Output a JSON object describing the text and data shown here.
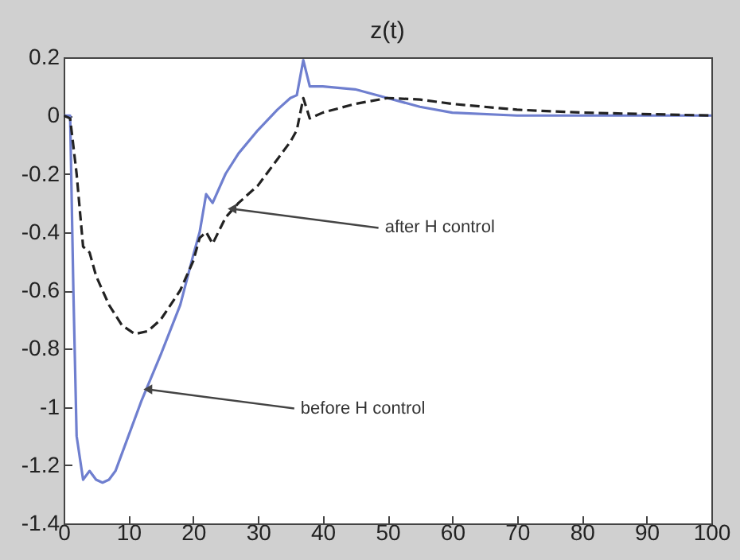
{
  "chart_data": {
    "type": "line",
    "title": "z(t)",
    "xlim": [
      0,
      100
    ],
    "xticks": [
      0,
      10,
      20,
      30,
      40,
      50,
      60,
      70,
      80,
      90,
      100
    ],
    "ylim": [
      -1.4,
      0.2
    ],
    "yticks": [
      -1.4,
      -1.2,
      -1,
      -0.8,
      -0.6,
      -0.4,
      -0.2,
      0,
      0.2
    ],
    "grid": false,
    "series": [
      {
        "color": "#6f7fcf",
        "line_style": "solid",
        "x": [
          0,
          1,
          1.5,
          2,
          3,
          4,
          5,
          6,
          7,
          8,
          10,
          12,
          15,
          18,
          20,
          21,
          22,
          23,
          25,
          27,
          30,
          33,
          35,
          36,
          37,
          38,
          40,
          45,
          50,
          55,
          60,
          70,
          80,
          100
        ],
        "values": [
          0,
          0,
          -0.6,
          -1.1,
          -1.25,
          -1.22,
          -1.25,
          -1.26,
          -1.25,
          -1.22,
          -1.1,
          -0.98,
          -0.82,
          -0.65,
          -0.48,
          -0.4,
          -0.27,
          -0.3,
          -0.2,
          -0.13,
          -0.05,
          0.02,
          0.06,
          0.07,
          0.19,
          0.1,
          0.1,
          0.09,
          0.06,
          0.03,
          0.01,
          0,
          0,
          0
        ]
      },
      {
        "color": "#222222",
        "line_style": "dashed",
        "x": [
          0,
          1,
          2,
          3,
          4,
          5,
          7,
          9,
          11,
          13,
          15,
          18,
          20,
          21,
          22,
          23,
          25,
          27,
          30,
          33,
          35,
          36,
          37,
          38,
          40,
          45,
          50,
          55,
          60,
          70,
          80,
          100
        ],
        "values": [
          0,
          -0.01,
          -0.2,
          -0.45,
          -0.47,
          -0.55,
          -0.65,
          -0.72,
          -0.75,
          -0.74,
          -0.7,
          -0.6,
          -0.5,
          -0.42,
          -0.4,
          -0.44,
          -0.35,
          -0.3,
          -0.24,
          -0.15,
          -0.09,
          -0.05,
          0.06,
          -0.01,
          0.01,
          0.04,
          0.06,
          0.055,
          0.04,
          0.02,
          0.01,
          0
        ]
      }
    ],
    "annotations": [
      {
        "text": "after H control",
        "x": 26,
        "y": -0.32
      },
      {
        "text": "before H control",
        "x": 13,
        "y": -0.94
      }
    ]
  }
}
